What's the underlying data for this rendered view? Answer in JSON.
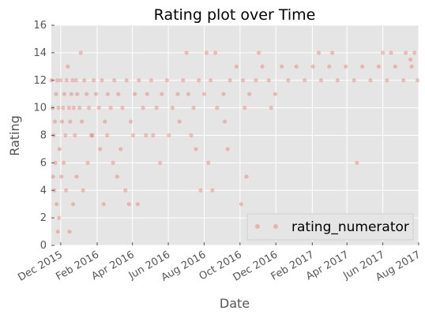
{
  "chart_data": {
    "type": "scatter",
    "title": "Rating plot over Time",
    "xlabel": "Date",
    "ylabel": "Rating",
    "xlim": [
      "2015-11-15",
      "2017-08-01"
    ],
    "ylim": [
      0,
      16
    ],
    "grid": true,
    "legend_position": "bottom-right",
    "point_color": "#E24A33",
    "plot_background": "#E5E5E5",
    "x_ticks": [
      {
        "date": "2015-12-01",
        "label": "Dec 2015"
      },
      {
        "date": "2016-02-01",
        "label": "Feb 2016"
      },
      {
        "date": "2016-04-01",
        "label": "Apr 2016"
      },
      {
        "date": "2016-06-01",
        "label": "Jun 2016"
      },
      {
        "date": "2016-08-01",
        "label": "Aug 2016"
      },
      {
        "date": "2016-10-01",
        "label": "Oct 2016"
      },
      {
        "date": "2016-12-01",
        "label": "Dec 2016"
      },
      {
        "date": "2017-02-01",
        "label": "Feb 2017"
      },
      {
        "date": "2017-04-01",
        "label": "Apr 2017"
      },
      {
        "date": "2017-06-01",
        "label": "Jun 2017"
      },
      {
        "date": "2017-08-01",
        "label": "Aug 2017"
      }
    ],
    "y_ticks": [
      "0",
      "2",
      "4",
      "6",
      "8",
      "10",
      "12",
      "14",
      "16"
    ],
    "series": [
      {
        "name": "rating_numerator",
        "points": [
          [
            "2015-11-15",
            12
          ],
          [
            "2015-11-17",
            10
          ],
          [
            "2015-11-19",
            8
          ],
          [
            "2015-11-21",
            9
          ],
          [
            "2015-11-23",
            11
          ],
          [
            "2015-11-25",
            12
          ],
          [
            "2015-11-27",
            10
          ],
          [
            "2015-11-29",
            7
          ],
          [
            "2015-12-01",
            12
          ],
          [
            "2015-12-03",
            9
          ],
          [
            "2015-12-05",
            10
          ],
          [
            "2015-12-07",
            11
          ],
          [
            "2015-12-09",
            8
          ],
          [
            "2015-12-11",
            12
          ],
          [
            "2015-12-13",
            13
          ],
          [
            "2015-12-15",
            10
          ],
          [
            "2015-12-17",
            9
          ],
          [
            "2015-12-19",
            11
          ],
          [
            "2015-12-21",
            12
          ],
          [
            "2015-12-23",
            10
          ],
          [
            "2015-12-25",
            8
          ],
          [
            "2015-12-27",
            12
          ],
          [
            "2015-12-29",
            11
          ],
          [
            "2016-01-02",
            10
          ],
          [
            "2016-01-06",
            9
          ],
          [
            "2016-01-10",
            12
          ],
          [
            "2016-01-14",
            11
          ],
          [
            "2016-01-18",
            10
          ],
          [
            "2016-01-22",
            8
          ],
          [
            "2016-01-26",
            12
          ],
          [
            "2016-01-30",
            11
          ],
          [
            "2016-02-04",
            10
          ],
          [
            "2016-02-09",
            12
          ],
          [
            "2016-02-14",
            9
          ],
          [
            "2016-02-19",
            11
          ],
          [
            "2016-02-24",
            10
          ],
          [
            "2016-03-01",
            12
          ],
          [
            "2016-03-08",
            11
          ],
          [
            "2016-03-15",
            10
          ],
          [
            "2016-03-22",
            12
          ],
          [
            "2016-03-29",
            9
          ],
          [
            "2016-04-05",
            11
          ],
          [
            "2016-04-12",
            12
          ],
          [
            "2016-04-19",
            10
          ],
          [
            "2016-04-26",
            11
          ],
          [
            "2016-05-03",
            12
          ],
          [
            "2016-05-12",
            10
          ],
          [
            "2016-05-21",
            11
          ],
          [
            "2016-05-30",
            12
          ],
          [
            "2016-06-08",
            10
          ],
          [
            "2016-06-17",
            11
          ],
          [
            "2016-06-26",
            12
          ],
          [
            "2016-07-05",
            11
          ],
          [
            "2016-07-14",
            10
          ],
          [
            "2016-07-23",
            12
          ],
          [
            "2016-08-01",
            11
          ],
          [
            "2016-08-12",
            12
          ],
          [
            "2016-08-23",
            10
          ],
          [
            "2016-09-03",
            11
          ],
          [
            "2016-09-14",
            12
          ],
          [
            "2016-09-25",
            13
          ],
          [
            "2016-10-06",
            12
          ],
          [
            "2016-10-17",
            11
          ],
          [
            "2016-10-28",
            12
          ],
          [
            "2016-11-08",
            13
          ],
          [
            "2016-11-19",
            12
          ],
          [
            "2016-11-30",
            11
          ],
          [
            "2016-12-11",
            13
          ],
          [
            "2016-12-22",
            12
          ],
          [
            "2017-01-05",
            13
          ],
          [
            "2017-01-19",
            12
          ],
          [
            "2017-02-02",
            13
          ],
          [
            "2017-02-16",
            12
          ],
          [
            "2017-03-02",
            13
          ],
          [
            "2017-03-16",
            12
          ],
          [
            "2017-03-30",
            13
          ],
          [
            "2017-04-13",
            12
          ],
          [
            "2017-04-27",
            13
          ],
          [
            "2017-05-11",
            12
          ],
          [
            "2017-05-25",
            13
          ],
          [
            "2017-06-08",
            12
          ],
          [
            "2017-06-22",
            13
          ],
          [
            "2017-07-06",
            12
          ],
          [
            "2017-07-20",
            13
          ],
          [
            "2017-07-30",
            12
          ],
          [
            "2015-11-18",
            5
          ],
          [
            "2015-11-20",
            4
          ],
          [
            "2015-11-22",
            6
          ],
          [
            "2015-11-24",
            3
          ],
          [
            "2015-11-26",
            1
          ],
          [
            "2015-11-28",
            2
          ],
          [
            "2015-12-02",
            5
          ],
          [
            "2015-12-06",
            6
          ],
          [
            "2015-12-10",
            4
          ],
          [
            "2015-12-16",
            1
          ],
          [
            "2015-12-22",
            3
          ],
          [
            "2015-12-28",
            5
          ],
          [
            "2016-01-04",
            14
          ],
          [
            "2016-01-08",
            4
          ],
          [
            "2016-01-16",
            6
          ],
          [
            "2016-01-24",
            8
          ],
          [
            "2016-02-06",
            7
          ],
          [
            "2016-02-12",
            3
          ],
          [
            "2016-02-18",
            8
          ],
          [
            "2016-02-28",
            6
          ],
          [
            "2016-03-06",
            5
          ],
          [
            "2016-03-12",
            7
          ],
          [
            "2016-03-20",
            4
          ],
          [
            "2016-03-26",
            3
          ],
          [
            "2016-04-02",
            8
          ],
          [
            "2016-04-10",
            3
          ],
          [
            "2016-04-24",
            8
          ],
          [
            "2016-05-06",
            8
          ],
          [
            "2016-05-18",
            6
          ],
          [
            "2016-06-02",
            8
          ],
          [
            "2016-06-20",
            9
          ],
          [
            "2016-07-02",
            14
          ],
          [
            "2016-07-10",
            8
          ],
          [
            "2016-07-18",
            7
          ],
          [
            "2016-07-26",
            4
          ],
          [
            "2016-08-05",
            14
          ],
          [
            "2016-08-08",
            6
          ],
          [
            "2016-08-15",
            4
          ],
          [
            "2016-08-20",
            14
          ],
          [
            "2016-09-05",
            9
          ],
          [
            "2016-09-10",
            7
          ],
          [
            "2016-10-03",
            3
          ],
          [
            "2016-10-09",
            10
          ],
          [
            "2016-10-12",
            5
          ],
          [
            "2016-11-02",
            14
          ],
          [
            "2016-11-23",
            10
          ],
          [
            "2017-02-12",
            14
          ],
          [
            "2017-03-07",
            14
          ],
          [
            "2017-04-18",
            6
          ],
          [
            "2017-06-01",
            14
          ],
          [
            "2017-06-15",
            14
          ],
          [
            "2017-07-10",
            14
          ],
          [
            "2017-07-18",
            13.5
          ],
          [
            "2017-07-25",
            14
          ]
        ]
      }
    ]
  }
}
